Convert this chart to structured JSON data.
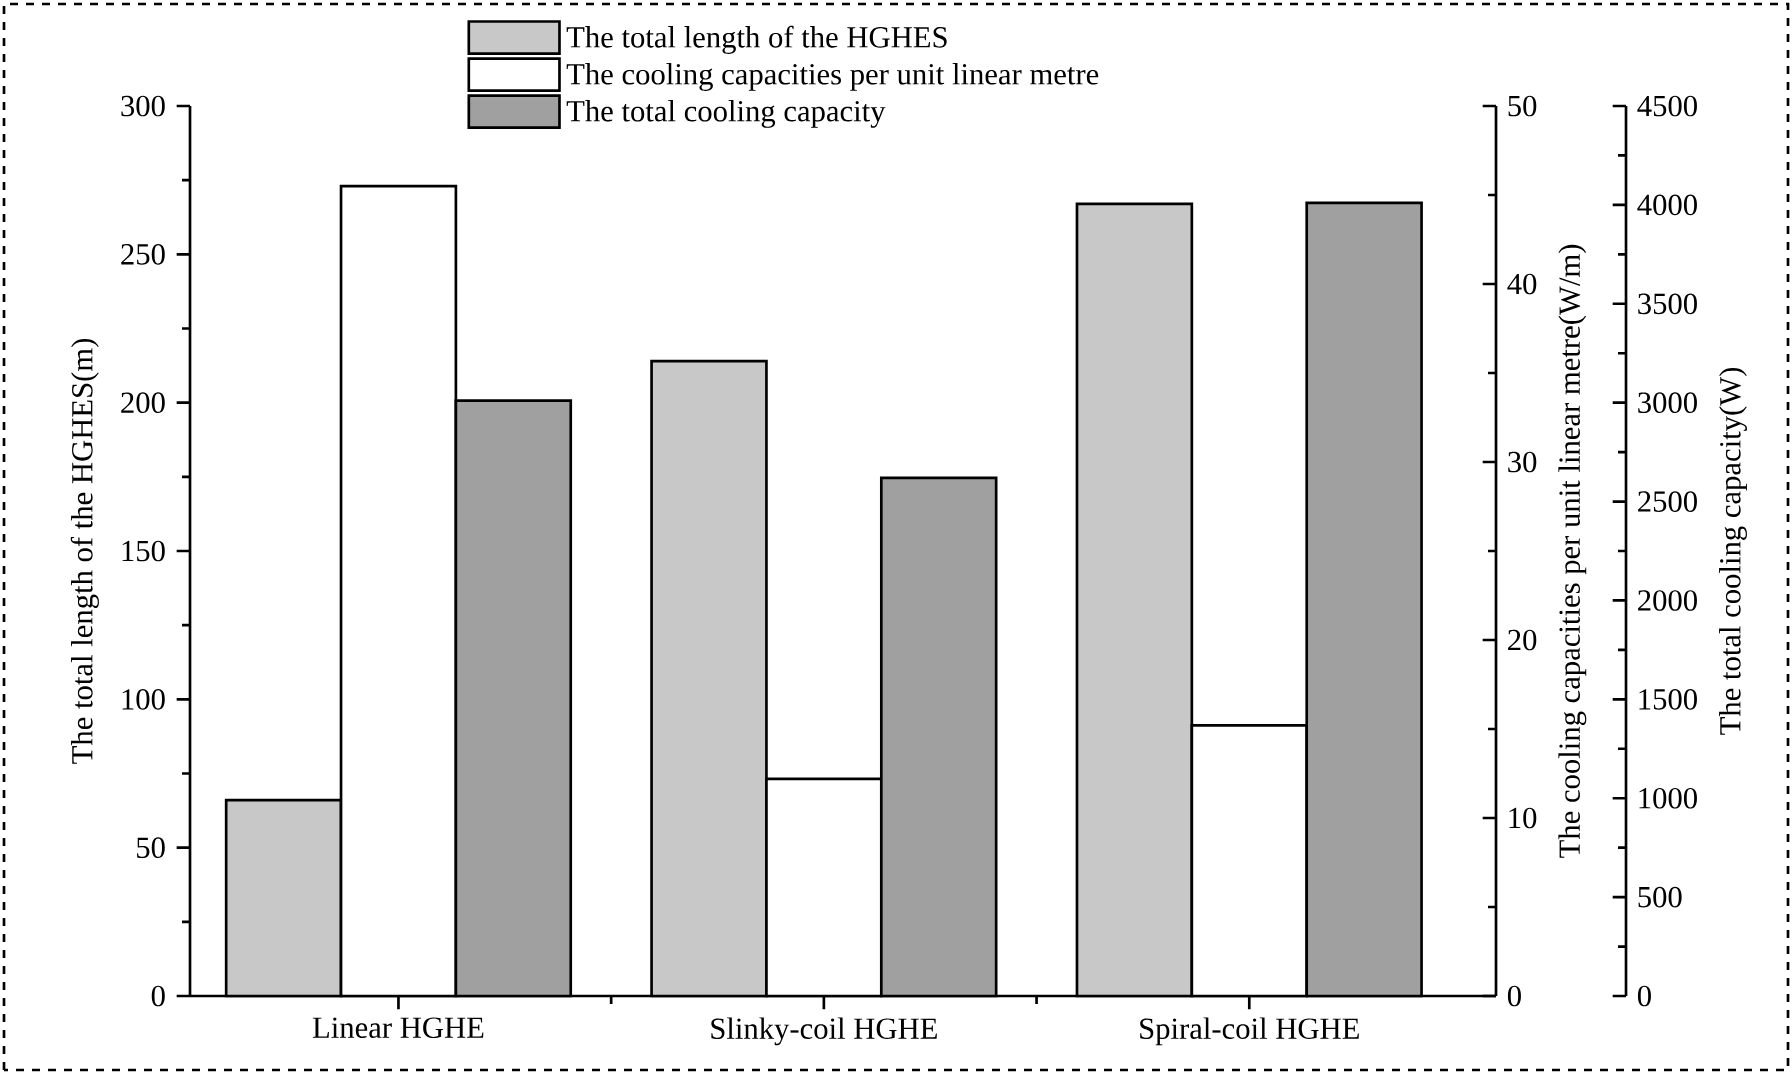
{
  "chart_data": {
    "type": "bar",
    "categories": [
      "Linear HGHE",
      "Slinky-coil HGHE",
      "Spiral-coil HGHE"
    ],
    "series": [
      {
        "name": "The total length of the HGHES",
        "color": "#c8c8c8",
        "values": [
          66,
          214,
          267
        ],
        "axis": "y"
      },
      {
        "name": "The cooling capacities per unit linear metre",
        "color": "#ffffff",
        "values": [
          45.5,
          12.2,
          15.2
        ],
        "axis": "y2"
      },
      {
        "name": "The total cooling capacity",
        "color": "#a0a0a0",
        "values": [
          3010,
          2620,
          4010
        ],
        "axis": "y3"
      }
    ],
    "ylabel": "The total length of the HGHES(m)",
    "y2label": "The cooling capacities per unit linear metre(W/m)",
    "y3label": "The total cooling capacity(W)",
    "ylim": [
      0,
      300
    ],
    "yticks": [
      0,
      50,
      100,
      150,
      200,
      250,
      300
    ],
    "y2lim": [
      0,
      50
    ],
    "y2ticks": [
      0,
      10,
      20,
      30,
      40,
      50
    ],
    "y3lim": [
      0,
      4500
    ],
    "y3ticks": [
      0,
      500,
      1000,
      1500,
      2000,
      2500,
      3000,
      3500,
      4000,
      4500
    ],
    "legend": "top",
    "grid": false
  }
}
